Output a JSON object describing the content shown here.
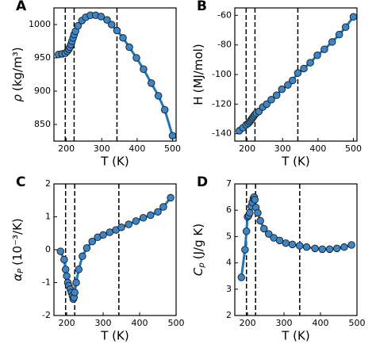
{
  "chart_data": [
    {
      "type": "line",
      "title": "A",
      "xlabel": "T (K)",
      "ylabel_symbol": "ρ",
      "ylabel_unit": "(kg/m³)",
      "ylabel_italic": true,
      "x": [
        178,
        188,
        197,
        203,
        207,
        210,
        213,
        216,
        219,
        222,
        226,
        233,
        244,
        255,
        268,
        283,
        298,
        315,
        328,
        343,
        360,
        378,
        398,
        418,
        440,
        460,
        478,
        500
      ],
      "values": [
        955,
        956,
        957,
        960,
        963,
        966,
        970,
        975,
        980,
        985,
        990,
        998,
        1006,
        1011,
        1014,
        1014,
        1012,
        1007,
        1000,
        991,
        980,
        966,
        950,
        933,
        912,
        893,
        872,
        833
      ],
      "color": "#1f77b4",
      "marker_color": "#3a86c8",
      "xlim": [
        165,
        510
      ],
      "ylim": [
        825,
        1025
      ],
      "xticks": [
        200,
        300,
        400,
        500
      ],
      "yticks": [
        850,
        900,
        950,
        1000
      ],
      "vlines": [
        197,
        222,
        343
      ]
    },
    {
      "type": "line",
      "title": "B",
      "xlabel": "T (K)",
      "ylabel_symbol": "H",
      "ylabel_unit": "(MJ/mol)",
      "ylabel_italic": false,
      "x": [
        178,
        188,
        197,
        203,
        207,
        210,
        213,
        216,
        219,
        222,
        226,
        233,
        244,
        255,
        268,
        283,
        298,
        315,
        328,
        343,
        360,
        378,
        398,
        418,
        440,
        460,
        478,
        500
      ],
      "values": [
        -138,
        -136,
        -134,
        -133,
        -132,
        -131,
        -130,
        -129,
        -128,
        -127,
        -126,
        -125,
        -122,
        -120,
        -117,
        -114,
        -110,
        -107,
        -104,
        -99,
        -96,
        -92,
        -87,
        -83,
        -78,
        -73,
        -68,
        -61
      ],
      "color": "#1f77b4",
      "marker_color": "#3a86c8",
      "xlim": [
        165,
        510
      ],
      "ylim": [
        -145,
        -55
      ],
      "xticks": [
        200,
        300,
        400,
        500
      ],
      "yticks": [
        -140,
        -120,
        -100,
        -80,
        -60
      ],
      "vlines": [
        197,
        222,
        343
      ]
    },
    {
      "type": "line",
      "title": "C",
      "xlabel": "T (K)",
      "ylabel_symbol": "α",
      "ylabel_sub": "P",
      "ylabel_unit": "(10⁻³/K)",
      "ylabel_italic": true,
      "x": [
        183,
        193,
        197,
        200,
        203,
        206,
        210,
        213,
        216,
        218,
        220,
        222,
        226,
        233,
        243,
        255,
        270,
        285,
        300,
        318,
        335,
        350,
        370,
        390,
        410,
        430,
        450,
        465,
        485
      ],
      "values": [
        -0.05,
        -0.3,
        -0.6,
        -0.8,
        -1.0,
        -1.1,
        -1.2,
        -1.3,
        -1.4,
        -1.5,
        -1.45,
        -1.3,
        -1.0,
        -0.6,
        -0.2,
        0.05,
        0.25,
        0.38,
        0.45,
        0.53,
        0.6,
        0.68,
        0.77,
        0.87,
        0.97,
        1.05,
        1.15,
        1.3,
        1.58
      ],
      "color": "#1f77b4",
      "marker_color": "#3a86c8",
      "xlim": [
        165,
        500
      ],
      "ylim": [
        -2,
        2
      ],
      "xticks": [
        200,
        300,
        400,
        500
      ],
      "yticks": [
        -2,
        -1,
        0,
        1,
        2
      ],
      "vlines": [
        197,
        222,
        343
      ]
    },
    {
      "type": "line",
      "title": "D",
      "xlabel": "T (K)",
      "ylabel_symbol": "C",
      "ylabel_sub": "p",
      "ylabel_unit": "(J/g K)",
      "ylabel_italic": true,
      "x": [
        183,
        193,
        197,
        200,
        203,
        206,
        210,
        213,
        216,
        218,
        220,
        223,
        228,
        235,
        245,
        258,
        272,
        288,
        305,
        323,
        343,
        362,
        385,
        405,
        425,
        445,
        465,
        485
      ],
      "values": [
        3.45,
        4.5,
        5.2,
        5.75,
        5.8,
        5.9,
        6.15,
        6.3,
        6.45,
        6.5,
        6.4,
        6.1,
        5.9,
        5.6,
        5.3,
        5.1,
        4.95,
        4.85,
        4.75,
        4.7,
        4.65,
        4.6,
        4.55,
        4.52,
        4.52,
        4.55,
        4.6,
        4.68
      ],
      "color": "#1f77b4",
      "marker_color": "#3a86c8",
      "xlim": [
        165,
        500
      ],
      "ylim": [
        2,
        7
      ],
      "xticks": [
        200,
        300,
        400,
        500
      ],
      "yticks": [
        2,
        3,
        4,
        5,
        6,
        7
      ],
      "vlines": [
        197,
        222,
        343
      ]
    }
  ]
}
